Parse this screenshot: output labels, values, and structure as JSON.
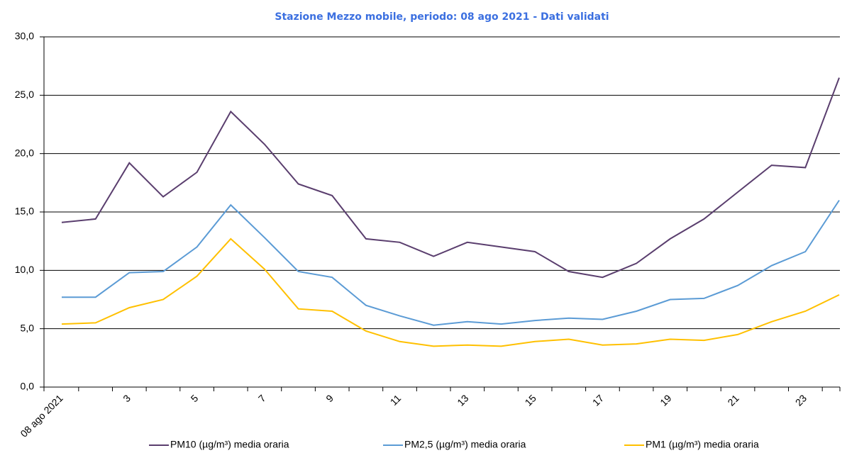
{
  "chart_data": {
    "type": "line",
    "title": "Stazione Mezzo mobile, periodo: 08 ago 2021 - Dati validati",
    "categories": [
      "08 ago 2021",
      null,
      "3",
      null,
      "5",
      null,
      "7",
      null,
      "9",
      null,
      "11",
      null,
      "13",
      null,
      "15",
      null,
      "17",
      null,
      "19",
      null,
      "21",
      null,
      "23",
      null
    ],
    "series": [
      {
        "name": "PM10 (µg/m³) media oraria",
        "color": "#5a3e6e",
        "values": [
          14.1,
          14.4,
          19.2,
          16.3,
          18.4,
          23.6,
          20.8,
          17.4,
          16.4,
          12.7,
          12.4,
          11.2,
          12.4,
          12.0,
          11.6,
          9.9,
          9.4,
          10.6,
          12.7,
          14.4,
          16.7,
          19.0,
          18.8,
          26.5
        ]
      },
      {
        "name": "PM2,5 (µg/m³) media oraria",
        "color": "#5b9bd5",
        "values": [
          7.7,
          7.7,
          9.8,
          9.9,
          12.0,
          15.6,
          12.8,
          9.9,
          9.4,
          7.0,
          6.1,
          5.3,
          5.6,
          5.4,
          5.7,
          5.9,
          5.8,
          6.5,
          7.5,
          7.6,
          8.7,
          10.4,
          11.6,
          16.0
        ]
      },
      {
        "name": "PM1 (µg/m³) media oraria",
        "color": "#ffc000",
        "values": [
          5.4,
          5.5,
          6.8,
          7.5,
          9.5,
          12.7,
          10.1,
          6.7,
          6.5,
          4.8,
          3.9,
          3.5,
          3.6,
          3.5,
          3.9,
          4.1,
          3.6,
          3.7,
          4.1,
          4.0,
          4.5,
          5.6,
          6.5,
          7.9
        ]
      }
    ],
    "ylim": [
      0,
      30
    ],
    "yticks": [
      {
        "value": 0,
        "label": "0,0"
      },
      {
        "value": 5,
        "label": "5,0"
      },
      {
        "value": 10,
        "label": "10,0"
      },
      {
        "value": 15,
        "label": "15,0"
      },
      {
        "value": 20,
        "label": "20,0"
      },
      {
        "value": 25,
        "label": "25,0"
      },
      {
        "value": 30,
        "label": "30,0"
      }
    ],
    "grid": true,
    "legend": "bottom"
  }
}
